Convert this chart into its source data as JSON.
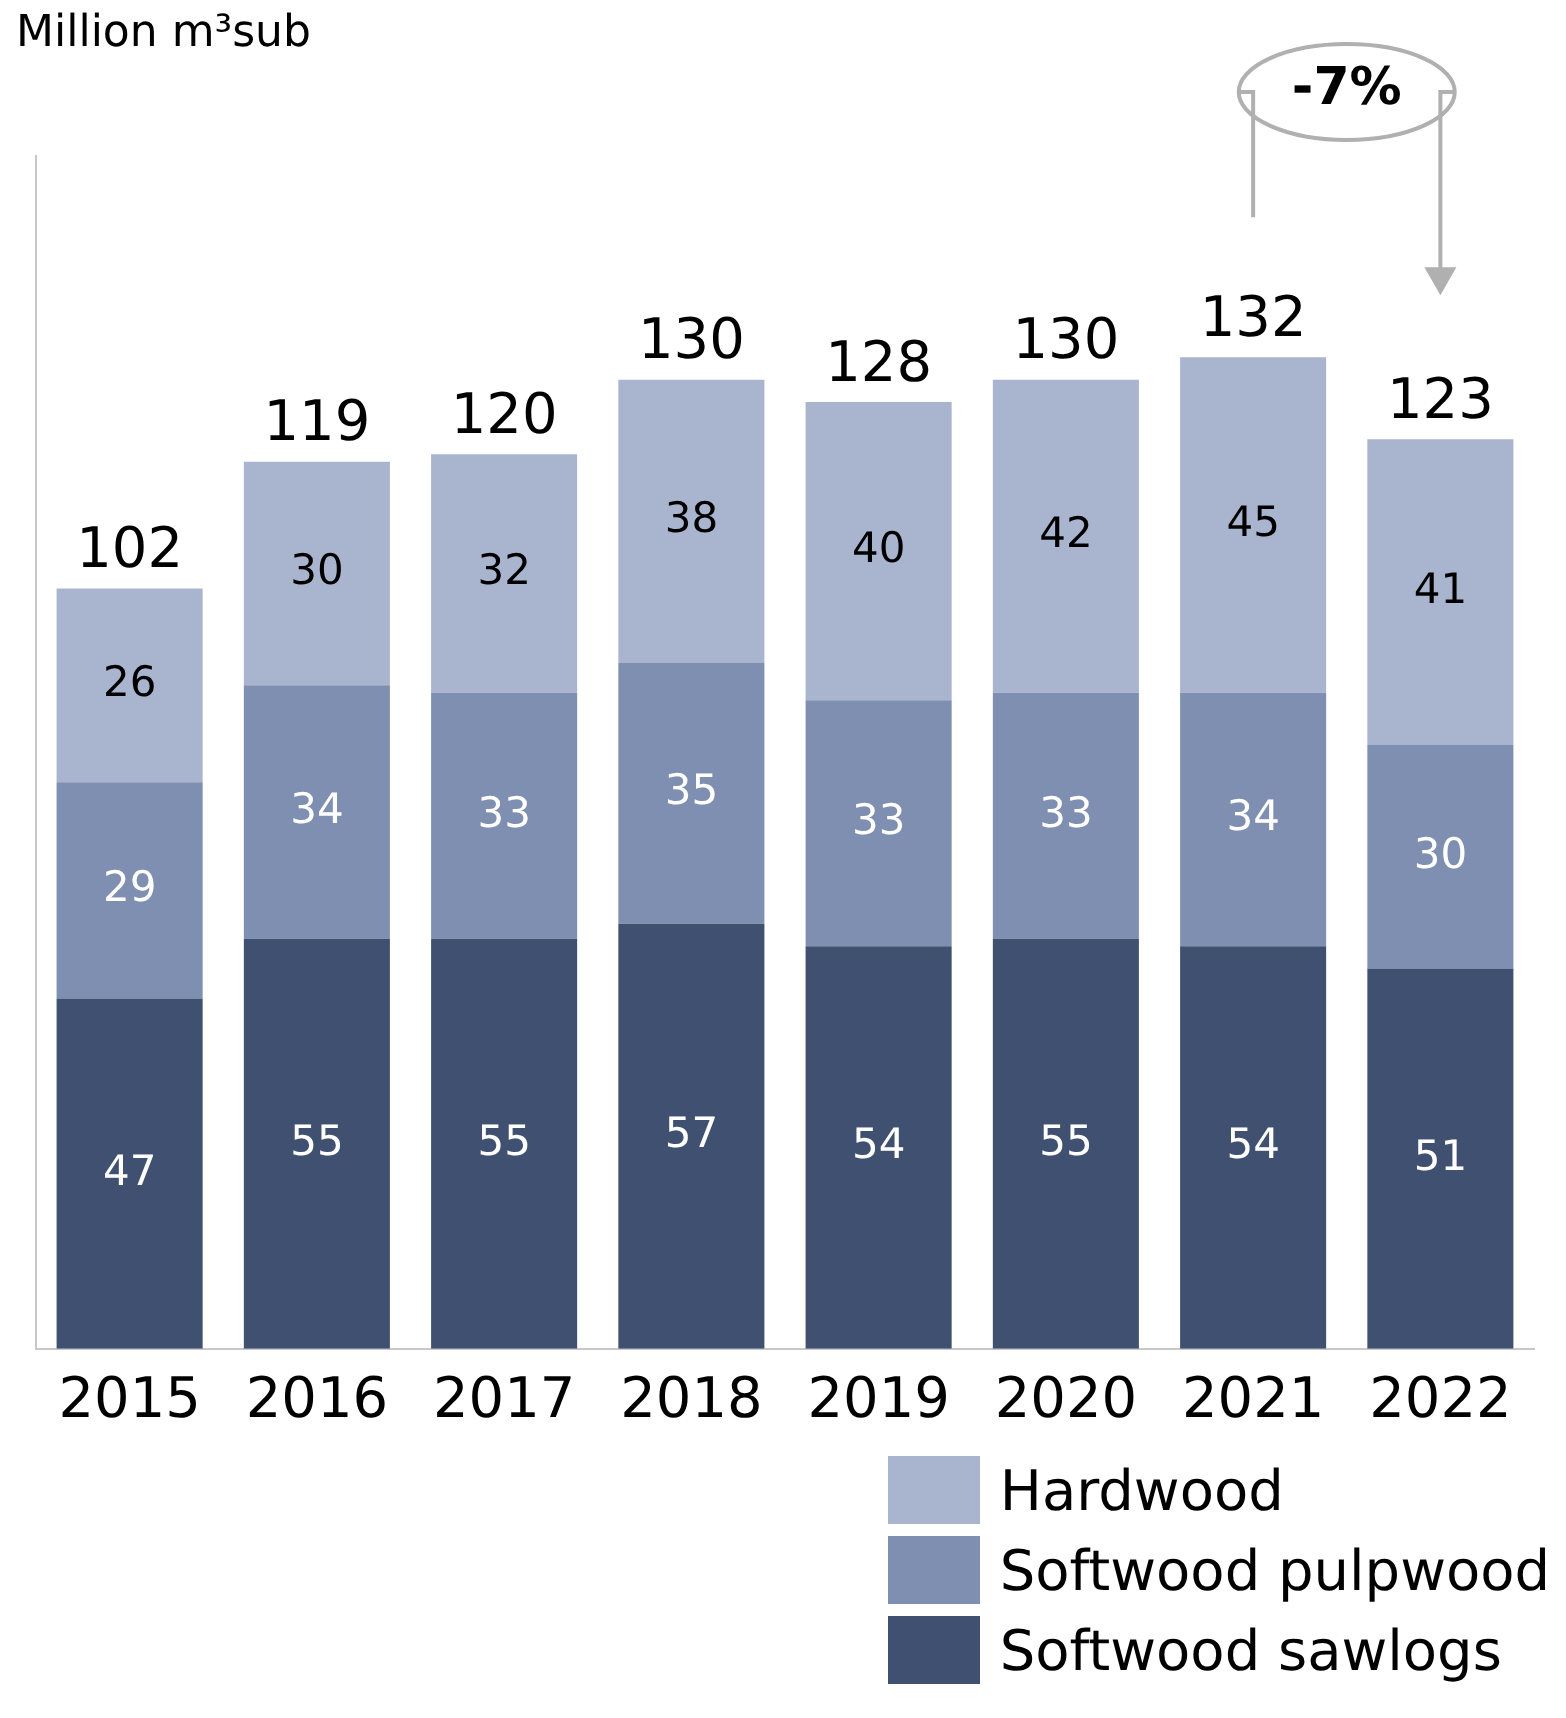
{
  "chart_data": {
    "type": "bar",
    "title": "Million m³sub",
    "stacked": true,
    "data_labels": true,
    "grid": false,
    "legend": "bottom right",
    "tick_labels": "x",
    "categories": [
      "2015",
      "2016",
      "2017",
      "2018",
      "2019",
      "2020",
      "2021",
      "2022"
    ],
    "series": [
      {
        "name": "Softwood sawlogs",
        "color": "#3f5070",
        "values": [
          47,
          55,
          55,
          57,
          54,
          55,
          54,
          51
        ]
      },
      {
        "name": "Softwood pulpwood",
        "color": "#7f8fb2",
        "values": [
          29,
          34,
          33,
          35,
          33,
          33,
          34,
          30
        ]
      },
      {
        "name": "Hardwood",
        "color": "#a9b4cf",
        "values": [
          26,
          30,
          32,
          38,
          40,
          42,
          45,
          41
        ]
      }
    ],
    "totals": [
      "102",
      "119",
      "120",
      "130",
      "128",
      "130",
      "132",
      "123"
    ],
    "annotations": [
      "-7%"
    ]
  }
}
